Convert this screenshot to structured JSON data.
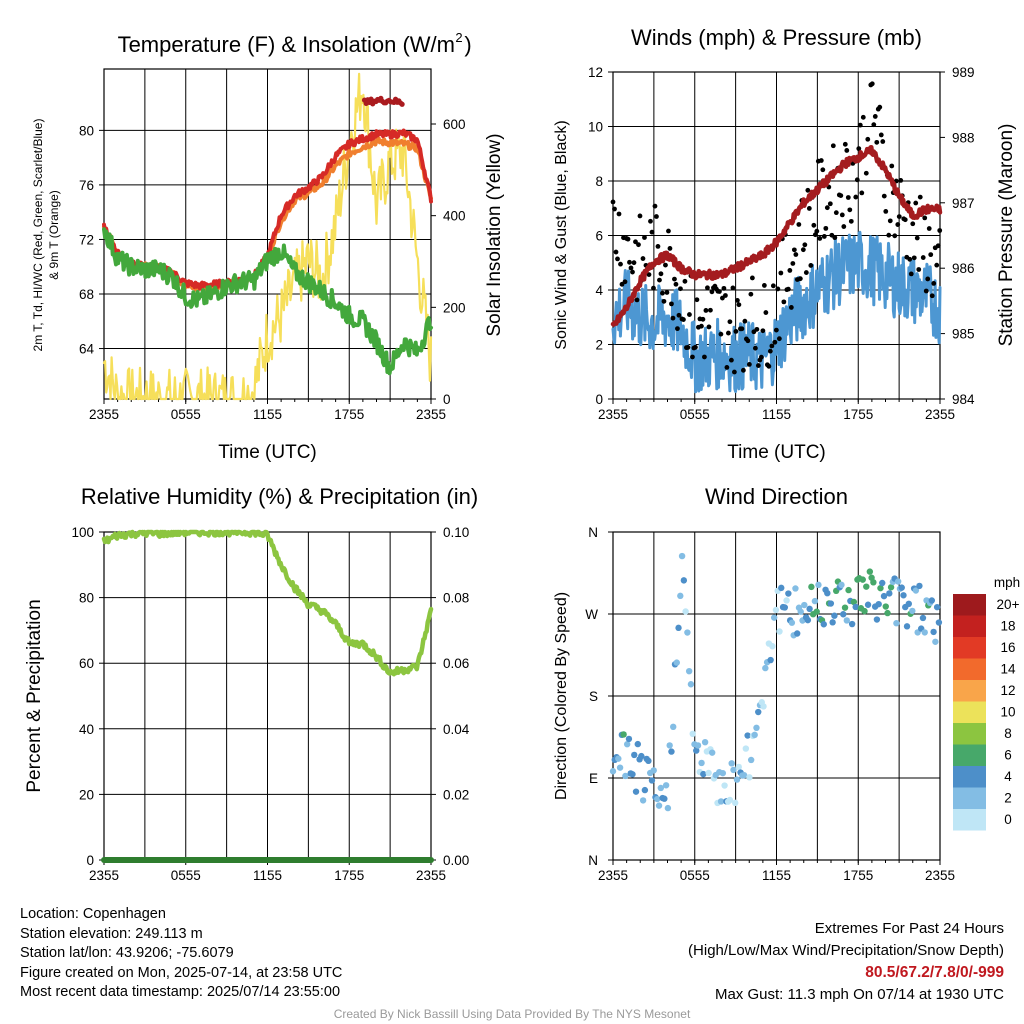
{
  "chart_data": [
    {
      "type": "line",
      "title": "Temperature (F) & Insolation (W/m²)",
      "xlabel": "Time (UTC)",
      "ylabel": "2m T, T_d, HI/WC (Red, Green, Scarlet/Blue) & 9m T (Orange)",
      "ylabel_right": "Solar Insolation (Yellow)",
      "x_ticks": [
        "2355",
        "0555",
        "1155",
        "1755",
        "2355"
      ],
      "y_ticks": [
        64,
        68,
        72,
        76,
        80
      ],
      "y_right_ticks": [
        0,
        200,
        400,
        600
      ],
      "ylim": [
        60.3,
        84.5
      ],
      "ylim_right": [
        0,
        720
      ],
      "x_hours": [
        0,
        1,
        2,
        3,
        4,
        5,
        6,
        7,
        8,
        9,
        10,
        11,
        12,
        13,
        14,
        15,
        16,
        17,
        18,
        19,
        20,
        21,
        22,
        23,
        24
      ],
      "colors": {
        "temp": "#d62a26",
        "heat_index": "#aa1b1f",
        "dewpoint": "#43a83c",
        "temp_9m": "#f07f2e",
        "insolation": "#f6df5a"
      },
      "series": [
        {
          "name": "2m T",
          "color": "#d62a26",
          "values": [
            73.0,
            71.0,
            70.2,
            70.0,
            69.9,
            69.6,
            68.8,
            68.6,
            68.7,
            68.8,
            69.0,
            69.3,
            70.8,
            73.8,
            75.2,
            75.8,
            76.6,
            78.1,
            79.0,
            79.4,
            79.7,
            79.7,
            79.8,
            79.3,
            75.0
          ]
        },
        {
          "name": "HI/WC",
          "color": "#aa1b1f",
          "values": [
            null,
            null,
            null,
            null,
            null,
            null,
            null,
            null,
            null,
            null,
            null,
            null,
            null,
            null,
            null,
            null,
            null,
            null,
            null,
            82.0,
            82.2,
            82.2,
            82.0,
            null,
            null
          ]
        },
        {
          "name": "T_d",
          "color": "#43a83c",
          "values": [
            72.8,
            70.6,
            70.0,
            69.8,
            69.8,
            69.3,
            67.8,
            67.5,
            68.0,
            68.6,
            68.9,
            69.0,
            70.5,
            71.2,
            69.6,
            68.9,
            68.2,
            67.4,
            66.4,
            66.0,
            64.5,
            62.6,
            64.5,
            63.7,
            66.2
          ]
        },
        {
          "name": "9m T",
          "color": "#f07f2e",
          "values": [
            73.0,
            71.0,
            70.2,
            70.0,
            69.9,
            69.5,
            68.6,
            68.4,
            68.6,
            68.8,
            68.9,
            69.2,
            70.7,
            73.4,
            74.9,
            75.4,
            76.1,
            77.4,
            78.3,
            78.8,
            79.2,
            79.1,
            79.0,
            78.7,
            75.0
          ]
        },
        {
          "name": "Insolation",
          "color": "#f6df5a",
          "axis": "right",
          "values": [
            80,
            5,
            0,
            0,
            0,
            0,
            0,
            0,
            0,
            0,
            0,
            20,
            140,
            180,
            250,
            300,
            260,
            380,
            560,
            690,
            420,
            520,
            540,
            300,
            80
          ]
        }
      ]
    },
    {
      "type": "scatter",
      "title": "Winds (mph) & Pressure (mb)",
      "xlabel": "Time (UTC)",
      "ylabel": "Sonic Wind & Gust (Blue, Black)",
      "ylabel_right": "Station Pressure (Maroon)",
      "x_ticks": [
        "2355",
        "0555",
        "1155",
        "1755",
        "2355"
      ],
      "y_ticks": [
        0,
        2,
        4,
        6,
        8,
        10,
        12
      ],
      "y_right_ticks": [
        984,
        985,
        986,
        987,
        988,
        989
      ],
      "ylim": [
        0,
        12
      ],
      "ylim_right": [
        984,
        989
      ],
      "colors": {
        "wind": "#4d97d2",
        "gust": "#000000",
        "pressure": "#a41c1f"
      },
      "x_hours": [
        0,
        1,
        2,
        3,
        4,
        5,
        6,
        7,
        8,
        9,
        10,
        11,
        12,
        13,
        14,
        15,
        16,
        17,
        18,
        19,
        20,
        21,
        22,
        23,
        24
      ],
      "series": [
        {
          "name": "Sonic Wind",
          "color": "#4d97d2",
          "values": [
            3.0,
            3.5,
            3.0,
            2.8,
            3.0,
            2.6,
            1.5,
            1.5,
            1.7,
            1.5,
            1.6,
            1.4,
            2.0,
            3.0,
            3.5,
            4.0,
            4.5,
            4.8,
            5.0,
            4.8,
            4.5,
            4.2,
            4.0,
            3.8,
            3.3
          ]
        },
        {
          "name": "Gust",
          "color": "#000000",
          "values": [
            6.5,
            5.5,
            5.0,
            5.5,
            5.0,
            4.0,
            2.5,
            3.0,
            3.0,
            2.5,
            3.0,
            2.5,
            3.5,
            5.0,
            6.0,
            7.0,
            7.5,
            8.0,
            8.5,
            11.0,
            8.0,
            7.0,
            6.0,
            5.5,
            4.5
          ]
        },
        {
          "name": "Station Pressure",
          "color": "#a41c1f",
          "axis": "right",
          "values": [
            985.1,
            985.4,
            985.8,
            986.1,
            986.2,
            986.0,
            985.9,
            985.9,
            985.9,
            986.0,
            986.1,
            986.2,
            986.4,
            986.7,
            987.0,
            987.2,
            987.4,
            987.6,
            987.7,
            987.8,
            987.5,
            987.1,
            986.8,
            986.9,
            986.9
          ]
        }
      ]
    },
    {
      "type": "line",
      "title": "Relative Humidity (%) & Precipitation (in)",
      "xlabel": "",
      "ylabel": "Percent & Precipitation",
      "x_ticks": [
        "2355",
        "0555",
        "1155",
        "1755",
        "2355"
      ],
      "y_ticks": [
        0,
        20,
        40,
        60,
        80,
        100
      ],
      "y_right_ticks": [
        "0.00",
        "0.02",
        "0.04",
        "0.06",
        "0.08",
        "0.10"
      ],
      "ylim": [
        0,
        100
      ],
      "ylim_right": [
        0,
        0.1
      ],
      "x_hours": [
        0,
        1,
        2,
        3,
        4,
        5,
        6,
        7,
        8,
        9,
        10,
        11,
        12,
        13,
        14,
        15,
        16,
        17,
        18,
        19,
        20,
        21,
        22,
        23,
        24
      ],
      "colors": {
        "rh": "#8cc540",
        "precip": "#2e7d2e"
      },
      "series": [
        {
          "name": "Relative Humidity",
          "color": "#8cc540",
          "values": [
            97,
            99,
            99.5,
            99.8,
            99.5,
            99.8,
            100,
            100,
            100,
            100,
            100,
            100,
            99,
            90,
            83,
            78,
            76,
            72,
            66,
            66,
            62,
            57,
            58,
            59,
            76
          ]
        },
        {
          "name": "Precipitation",
          "color": "#2e7d2e",
          "axis": "right",
          "values": [
            0,
            0,
            0,
            0,
            0,
            0,
            0,
            0,
            0,
            0,
            0,
            0,
            0,
            0,
            0,
            0,
            0,
            0,
            0,
            0,
            0,
            0,
            0,
            0,
            0
          ]
        }
      ]
    },
    {
      "type": "scatter",
      "title": "Wind Direction",
      "xlabel": "",
      "ylabel": "Direction (Colored By Speed)",
      "x_ticks": [
        "2355",
        "0555",
        "1155",
        "1755",
        "2355"
      ],
      "y_ticks": [
        "N",
        "E",
        "S",
        "W",
        "N"
      ],
      "legend_title": "mph",
      "legend": [
        {
          "label": "20+",
          "color": "#9e1a1d"
        },
        {
          "label": "18",
          "color": "#c3211f"
        },
        {
          "label": "16",
          "color": "#e23a25"
        },
        {
          "label": "14",
          "color": "#f26a2c"
        },
        {
          "label": "12",
          "color": "#f9a54a"
        },
        {
          "label": "10",
          "color": "#ece25a"
        },
        {
          "label": "8",
          "color": "#8cc540"
        },
        {
          "label": "6",
          "color": "#47a86a"
        },
        {
          "label": "4",
          "color": "#4d8fc9"
        },
        {
          "label": "2",
          "color": "#83bde4"
        },
        {
          "label": "0",
          "color": "#bfe6f6"
        }
      ],
      "legend_placement": "right",
      "x_hours": [
        0,
        1,
        2,
        3,
        4,
        5,
        6,
        7,
        8,
        9,
        10,
        11,
        12,
        13,
        14,
        15,
        16,
        17,
        18,
        19,
        20,
        21,
        22,
        23,
        24
      ],
      "direction_deg": [
        110,
        115,
        95,
        70,
        60,
        330,
        120,
        100,
        80,
        90,
        110,
        190,
        280,
        265,
        275,
        285,
        290,
        285,
        290,
        290,
        285,
        285,
        280,
        275,
        260
      ],
      "speed_mph": [
        3.0,
        3.5,
        3.0,
        2.8,
        3.0,
        2.6,
        1.5,
        1.5,
        1.7,
        1.5,
        1.6,
        1.4,
        2.0,
        3.0,
        3.5,
        4.0,
        4.5,
        4.8,
        5.0,
        4.8,
        4.5,
        4.2,
        4.0,
        3.8,
        3.3
      ]
    }
  ],
  "footer": {
    "location": "Location: Copenhagen",
    "elevation": "Station elevation: 249.113 m",
    "latlon": "Station lat/lon: 43.9206; -75.6079",
    "created": "Figure created on Mon, 2025-07-14, at 23:58 UTC",
    "recent": "Most recent data timestamp: 2025/07/14 23:55:00",
    "extremes_title": "Extremes For Past 24 Hours",
    "extremes_legend": "(High/Low/Max Wind/Precipitation/Snow Depth)",
    "extremes_values": "80.5/67.2/7.8/0/-999",
    "max_gust": "Max Gust: 11.3 mph On 07/14 at 1930 UTC"
  },
  "credit": "Created By Nick Bassill Using Data Provided By The NYS Mesonet"
}
